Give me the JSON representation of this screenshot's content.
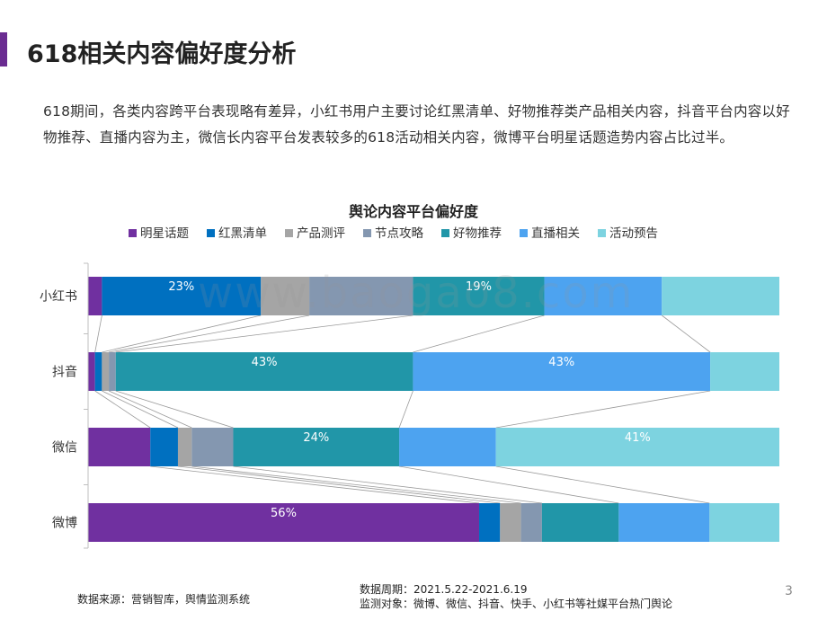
{
  "header": {
    "title": "618相关内容偏好度分析"
  },
  "description": "618期间，各类内容跨平台表现略有差异，小红书用户主要讨论红黑清单、好物推荐类产品相关内容，抖音平台内容以好物推荐、直播内容为主，微信长内容平台发表较多的618活动相关内容，微博平台明星话题造势内容占比过半。",
  "chart_data": {
    "type": "bar",
    "orientation": "horizontal",
    "stacked": true,
    "percent_stacked": true,
    "title": "舆论内容平台偏好度",
    "legend_position": "top",
    "grid": false,
    "xlim": [
      0,
      100
    ],
    "categories": [
      "小红书",
      "抖音",
      "微信",
      "微博"
    ],
    "series": [
      {
        "name": "明星话题",
        "color": "#7030a0",
        "values": [
          2,
          1,
          9,
          56
        ]
      },
      {
        "name": "红黑清单",
        "color": "#0070c0",
        "values": [
          23,
          1,
          4,
          3
        ]
      },
      {
        "name": "产品测评",
        "color": "#a5a5a5",
        "values": [
          7,
          1,
          2,
          3
        ]
      },
      {
        "name": "节点攻略",
        "color": "#8497b0",
        "values": [
          15,
          1,
          6,
          3
        ]
      },
      {
        "name": "好物推荐",
        "color": "#2196a8",
        "values": [
          19,
          43,
          24,
          11
        ]
      },
      {
        "name": "直播相关",
        "color": "#4da3f0",
        "values": [
          17,
          43,
          14,
          13
        ]
      },
      {
        "name": "活动预告",
        "color": "#7dd3e0",
        "values": [
          17,
          10,
          41,
          10
        ]
      }
    ],
    "data_labels": [
      {
        "category": "小红书",
        "series": "红黑清单",
        "text": "23%"
      },
      {
        "category": "小红书",
        "series": "好物推荐",
        "text": "19%"
      },
      {
        "category": "抖音",
        "series": "好物推荐",
        "text": "43%"
      },
      {
        "category": "抖音",
        "series": "直播相关",
        "text": "43%"
      },
      {
        "category": "微信",
        "series": "好物推荐",
        "text": "24%"
      },
      {
        "category": "微信",
        "series": "活动预告",
        "text": "41%"
      },
      {
        "category": "微博",
        "series": "明星话题",
        "text": "56%"
      }
    ]
  },
  "footer": {
    "source": "数据来源：营销智库，舆情监测系统",
    "period": "数据周期：2021.5.22-2021.6.19",
    "target": "监测对象：微博、微信、抖音、快手、小红书等社媒平台热门舆论"
  },
  "page_number": "3",
  "watermark": "www.baogao8.com"
}
